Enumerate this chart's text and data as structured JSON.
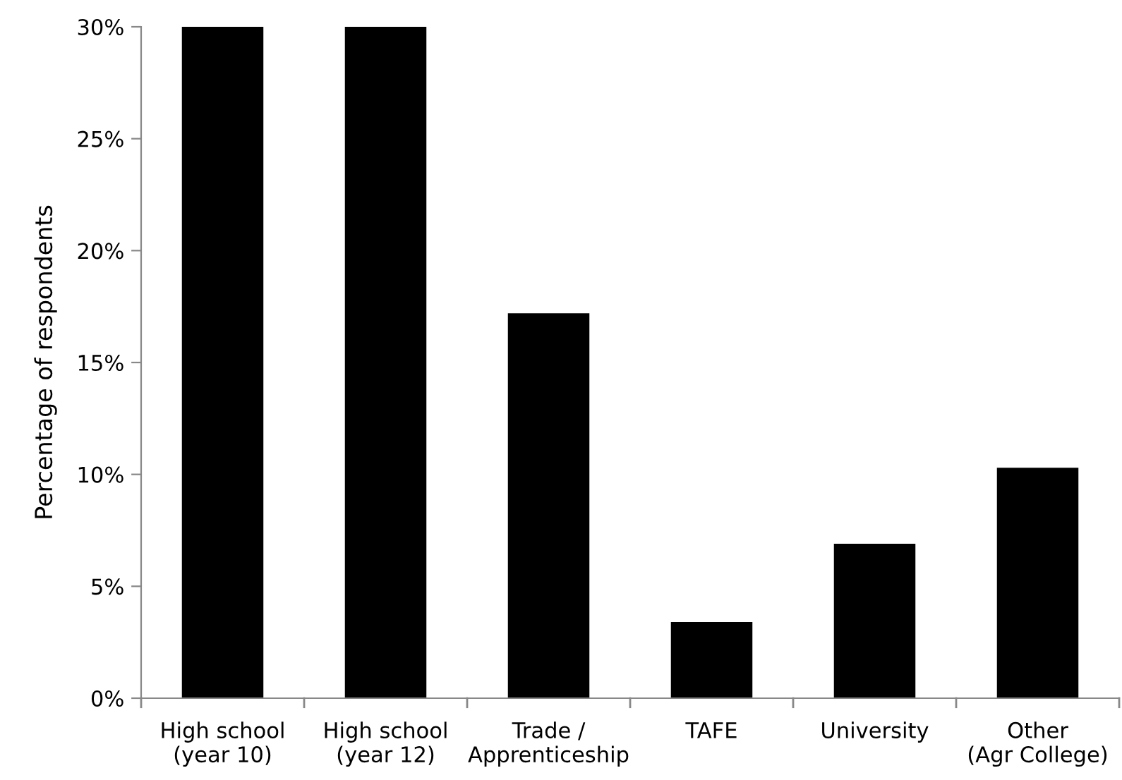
{
  "chart_data": {
    "type": "bar",
    "ylabel": "Percentage of respondents",
    "categories": [
      "High school\n(year 10)",
      "High school\n(year 12)",
      "Trade /\nApprenticeship",
      "TAFE",
      "University",
      "Other\n(Agr College)"
    ],
    "values": [
      30,
      30,
      17.2,
      3.4,
      6.9,
      10.3
    ],
    "color": "#000000",
    "ylim": [
      0,
      30
    ],
    "yticks": [
      {
        "value": 0,
        "label": "0%"
      },
      {
        "value": 5,
        "label": "5%"
      },
      {
        "value": 10,
        "label": "10%"
      },
      {
        "value": 15,
        "label": "15%"
      },
      {
        "value": 20,
        "label": "20%"
      },
      {
        "value": 25,
        "label": "25%"
      },
      {
        "value": 30,
        "label": "30%"
      }
    ],
    "grid": false,
    "legend": false
  }
}
